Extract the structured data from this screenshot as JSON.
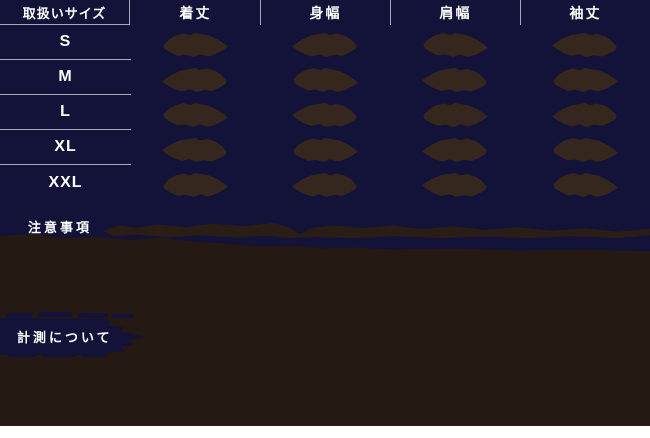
{
  "size_chart": {
    "size_column_header": "取扱いサイズ",
    "measure_headers": [
      "着丈",
      "身幅",
      "肩幅",
      "袖丈"
    ],
    "sizes": [
      {
        "label": "S"
      },
      {
        "label": "M"
      },
      {
        "label": "L"
      },
      {
        "label": "XL"
      },
      {
        "label": "XXL"
      }
    ],
    "values_state": "redacted"
  },
  "notes_section": {
    "title": "注意事項"
  },
  "measurement_section": {
    "title": "計測について"
  },
  "colors": {
    "table_background": "#131239",
    "cell_redaction": "#35271E",
    "lower_section_background": "#241A13",
    "divider_line": "#A9A9BE",
    "text": "#FFFFFF"
  }
}
